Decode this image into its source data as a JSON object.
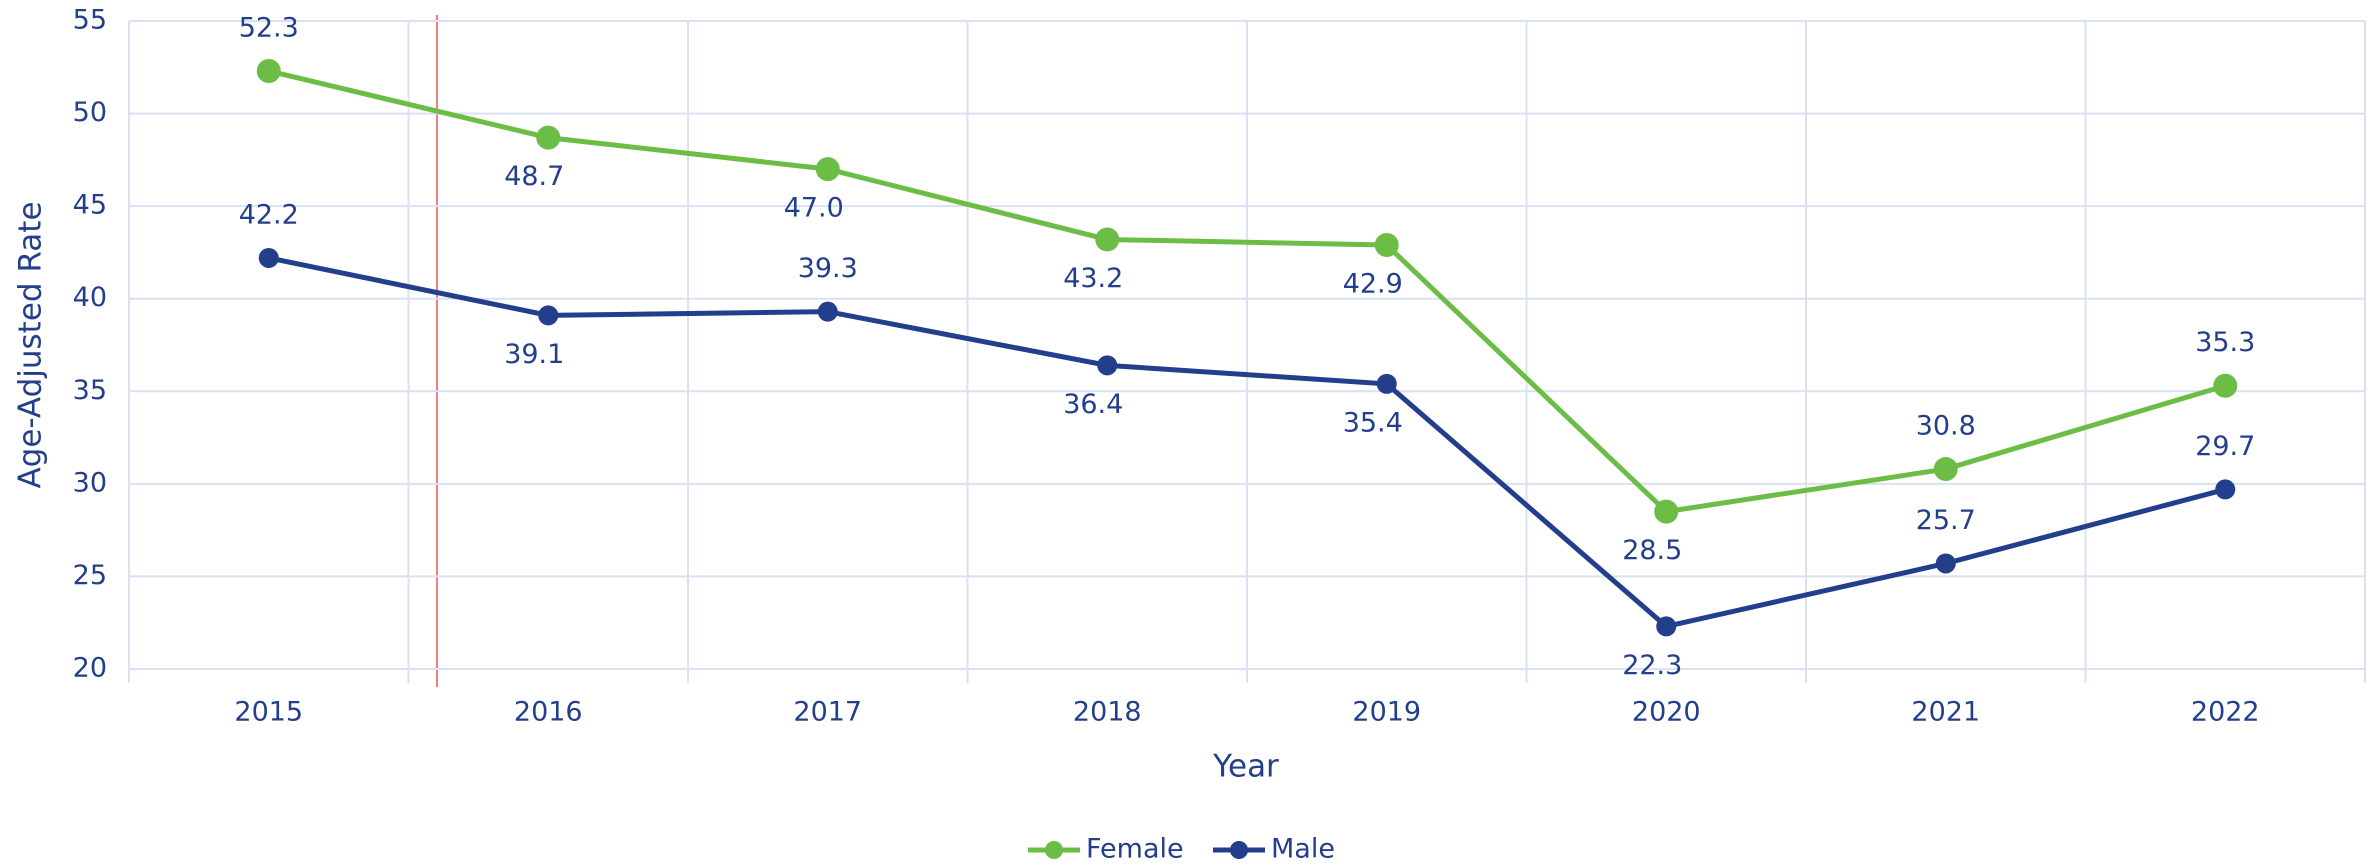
{
  "chart_data": {
    "type": "line",
    "x_label": "Year",
    "y_label": "Age-Adjusted Rate",
    "categories": [
      "2015",
      "2016",
      "2017",
      "2018",
      "2019",
      "2020",
      "2021",
      "2022"
    ],
    "series": [
      {
        "name": "Female",
        "color": "#6cbd45",
        "values": [
          52.3,
          48.7,
          47,
          43.2,
          42.9,
          28.5,
          30.8,
          35.3
        ],
        "value_labels": [
          "52.3",
          "48.7",
          "47.0",
          "43.2",
          "42.9",
          "28.5",
          "30.8",
          "35.3"
        ]
      },
      {
        "name": "Male",
        "color": "#233e8b",
        "values": [
          42.2,
          39.1,
          39.3,
          36.4,
          35.4,
          22.3,
          25.7,
          29.7
        ],
        "value_labels": [
          "42.2",
          "39.1",
          "39.3",
          "36.4",
          "35.4",
          "22.3",
          "25.7",
          "29.7"
        ]
      }
    ],
    "ylim": [
      20,
      55
    ],
    "yticks": [
      20,
      25,
      30,
      35,
      40,
      45,
      50,
      55
    ],
    "grid": true,
    "legend": "bottom"
  }
}
